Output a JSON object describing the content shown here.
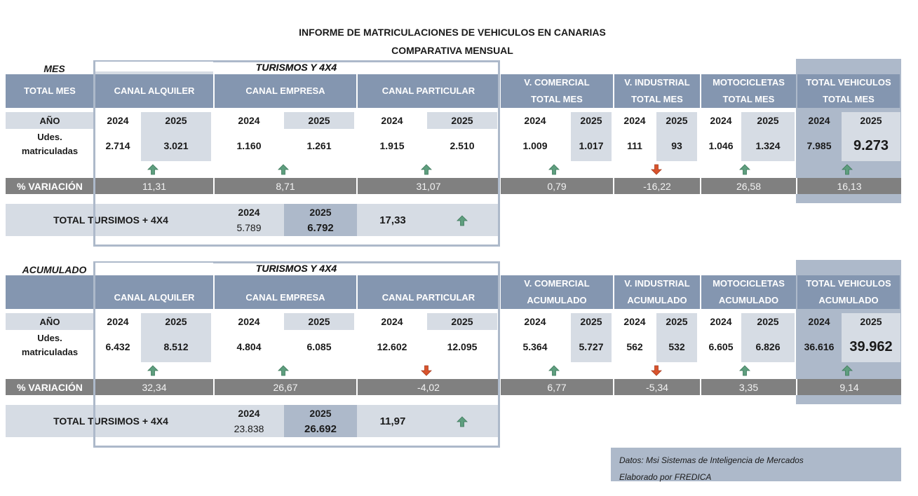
{
  "title_line1": "INFORME DE MATRICULACIONES DE VEHICULOS EN CANARIAS",
  "title_line2": "COMPARATIVA MENSUAL",
  "sections": [
    {
      "label": "MES",
      "group_label": "TURISMOS Y 4X4",
      "headers": {
        "first": "TOTAL MES",
        "alquiler": "CANAL ALQUILER",
        "empresa": "CANAL EMPRESA",
        "particular": "CANAL PARTICULAR",
        "comercial_1": "V. COMERCIAL",
        "comercial_2": "TOTAL MES",
        "industrial_1": "V. INDUSTRIAL",
        "industrial_2": "TOTAL MES",
        "moto_1": "MOTOCICLETAS",
        "moto_2": "TOTAL MES",
        "total_1": "TOTAL VEHICULOS",
        "total_2": "TOTAL MES"
      },
      "year_label": "AÑO",
      "units_label_1": "Udes.",
      "units_label_2": "matriculadas",
      "year_a": "2024",
      "year_b": "2025",
      "values": {
        "alquiler": [
          "2.714",
          "3.021"
        ],
        "empresa": [
          "1.160",
          "1.261"
        ],
        "particular": [
          "1.915",
          "2.510"
        ],
        "comercial": [
          "1.009",
          "1.017"
        ],
        "industrial": [
          "111",
          "93"
        ],
        "moto": [
          "1.046",
          "1.324"
        ],
        "total": [
          "7.985",
          "9.273"
        ]
      },
      "var_label": "% VARIACIÓN",
      "variation": {
        "alquiler": "11,31",
        "empresa": "8,71",
        "particular": "31,07",
        "comercial": "0,79",
        "industrial": "-16,22",
        "moto": "26,58",
        "total": "16,13"
      },
      "trend": {
        "alquiler": "up",
        "empresa": "up",
        "particular": "up",
        "comercial": "up",
        "industrial": "down",
        "moto": "up",
        "total": "up"
      },
      "summary": {
        "label": "TOTAL TURSIMOS + 4X4",
        "year_a": "2024",
        "year_b": "2025",
        "value_a": "5.789",
        "value_b": "6.792",
        "variation": "17,33",
        "trend": "up"
      }
    },
    {
      "label": "ACUMULADO",
      "group_label": "TURISMOS Y 4X4",
      "headers": {
        "first": "",
        "alquiler": "CANAL ALQUILER",
        "empresa": "CANAL EMPRESA",
        "particular": "CANAL PARTICULAR",
        "comercial_1": "V. COMERCIAL",
        "comercial_2": "ACUMULADO",
        "industrial_1": "V. INDUSTRIAL",
        "industrial_2": "ACUMULADO",
        "moto_1": "MOTOCICLETAS",
        "moto_2": "ACUMULADO",
        "total_1": "TOTAL VEHICULOS",
        "total_2": "ACUMULADO"
      },
      "year_label": "AÑO",
      "units_label_1": "Udes.",
      "units_label_2": "matriculadas",
      "year_a": "2024",
      "year_b": "2025",
      "values": {
        "alquiler": [
          "6.432",
          "8.512"
        ],
        "empresa": [
          "4.804",
          "6.085"
        ],
        "particular": [
          "12.602",
          "12.095"
        ],
        "comercial": [
          "5.364",
          "5.727"
        ],
        "industrial": [
          "562",
          "532"
        ],
        "moto": [
          "6.605",
          "6.826"
        ],
        "total": [
          "36.616",
          "39.962"
        ]
      },
      "var_label": "% VARIACIÓN",
      "variation": {
        "alquiler": "32,34",
        "empresa": "26,67",
        "particular": "-4,02",
        "comercial": "6,77",
        "industrial": "-5,34",
        "moto": "3,35",
        "total": "9,14"
      },
      "trend": {
        "alquiler": "up",
        "empresa": "up",
        "particular": "down",
        "comercial": "up",
        "industrial": "down",
        "moto": "up",
        "total": "up"
      },
      "summary": {
        "label": "TOTAL TURSIMOS + 4X4",
        "year_a": "2024",
        "year_b": "2025",
        "value_a": "23.838",
        "value_b": "26.692",
        "variation": "11,97",
        "trend": "up"
      }
    }
  ],
  "footer": {
    "line1": "Datos: Msi Sistemas de Inteligencia de Mercados",
    "line2": "Elaborado por FREDICA"
  },
  "colors": {
    "header": "#8496b0",
    "light_shade": "#d6dce4",
    "mid_shade": "#adb9ca",
    "variation_bar": "#808080",
    "arrow_up": "#5e9e7e",
    "arrow_down": "#d9532c"
  }
}
